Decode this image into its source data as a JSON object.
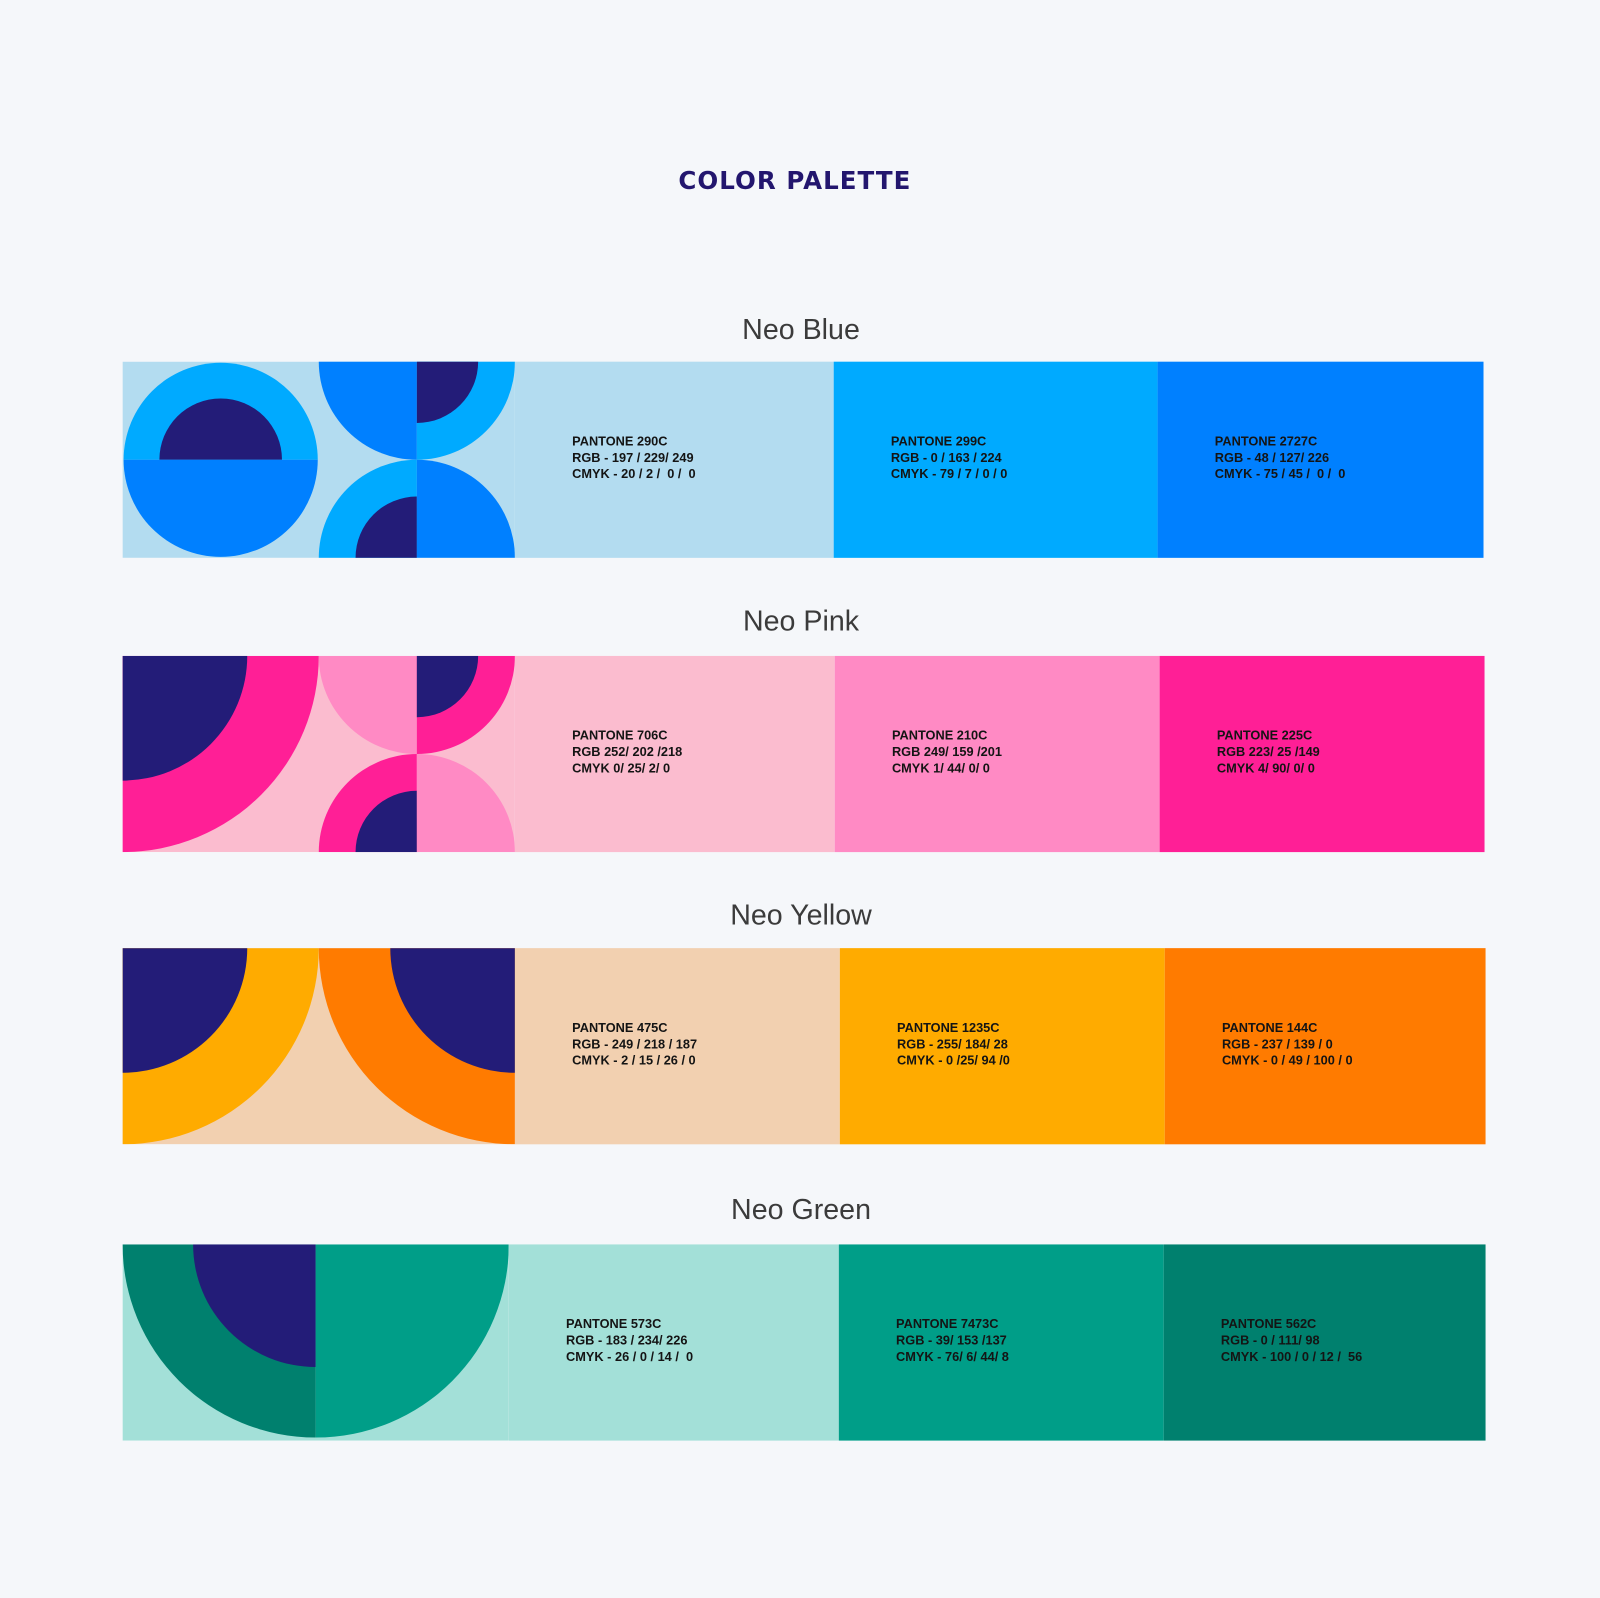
{
  "title": "COLOR PALETTE",
  "colors": {
    "navy": "#231c78"
  },
  "palettes": [
    {
      "name": "Neo Blue",
      "art_colors": {
        "bg": "#b3dcf0",
        "a": "#00aaff",
        "b": "#0080ff"
      },
      "swatches": [
        {
          "pantone": "PANTONE 290C",
          "rgb": "RGB - 197 / 229/ 249",
          "cmyk": "CMYK - 20 / 2 /  0 /  0",
          "color": "#b3dcf0"
        },
        {
          "pantone": "PANTONE 299C",
          "rgb": "RGB - 0 / 163 / 224",
          "cmyk": "CMYK - 79 / 7 / 0 / 0",
          "color": "#00aaff"
        },
        {
          "pantone": "PANTONE 2727C",
          "rgb": "RGB - 48 / 127/ 226",
          "cmyk": "CMYK - 75 / 45 /  0 /  0",
          "color": "#0080ff"
        }
      ]
    },
    {
      "name": "Neo Pink",
      "art_colors": {
        "bg": "#fbbccf",
        "a": "#ff1f96",
        "b": "#ff8ac4"
      },
      "swatches": [
        {
          "pantone": "PANTONE 706C",
          "rgb": "RGB 252/ 202 /218",
          "cmyk": "CMYK 0/ 25/ 2/ 0",
          "color": "#fbbccf"
        },
        {
          "pantone": "PANTONE 210C",
          "rgb": "RGB 249/ 159 /201",
          "cmyk": "CMYK 1/ 44/ 0/ 0",
          "color": "#ff8ac4"
        },
        {
          "pantone": "PANTONE 225C",
          "rgb": "RGB 223/ 25 /149",
          "cmyk": "CMYK 4/ 90/ 0/ 0",
          "color": "#ff1f96"
        }
      ]
    },
    {
      "name": "Neo Yellow",
      "art_colors": {
        "bg": "#f2d0b0",
        "a": "#ffab00",
        "b": "#ff7b00"
      },
      "swatches": [
        {
          "pantone": "PANTONE 475C",
          "rgb": "RGB - 249 / 218 / 187",
          "cmyk": "CMYK - 2 / 15 / 26 / 0",
          "color": "#f2d0b0"
        },
        {
          "pantone": "PANTONE 1235C",
          "rgb": "RGB - 255/ 184/ 28",
          "cmyk": "CMYK - 0 /25/ 94 /0",
          "color": "#ffab00"
        },
        {
          "pantone": "PANTONE 144C",
          "rgb": "RGB - 237 / 139 / 0",
          "cmyk": "CMYK - 0 / 49 / 100 / 0",
          "color": "#ff7b00"
        }
      ]
    },
    {
      "name": "Neo Green",
      "art_colors": {
        "bg": "#a3e0d8",
        "a": "#00806e",
        "b": "#009e88"
      },
      "swatches": [
        {
          "pantone": "PANTONE 573C",
          "rgb": "RGB - 183 / 234/ 226",
          "cmyk": "CMYK - 26 / 0 / 14 /  0",
          "color": "#a3e0d8"
        },
        {
          "pantone": "PANTONE 7473C",
          "rgb": "RGB - 39/ 153 /137",
          "cmyk": "CMYK - 76/ 6/ 44/ 8",
          "color": "#009e88"
        },
        {
          "pantone": "PANTONE 562C",
          "rgb": "RGB - 0 / 111/ 98",
          "cmyk": "CMYK - 100 / 0 / 12 /  56",
          "color": "#00806e"
        }
      ]
    }
  ]
}
